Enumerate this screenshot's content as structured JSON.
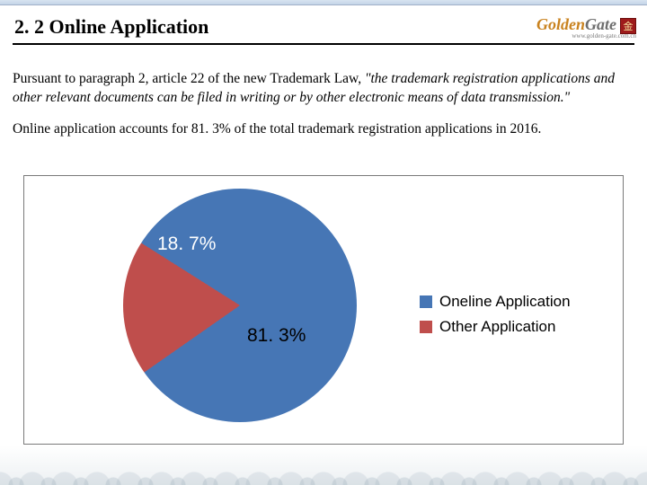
{
  "header": {
    "section_title": "2. 2  Online Application",
    "logo_part1": "Golden",
    "logo_part2": "Gate",
    "logo_seal": "金",
    "logo_subtitle": "www.golden-gate.com.cn"
  },
  "body": {
    "p1_lead": "Pursuant to paragraph 2, article 22 of the new Trademark Law, ",
    "p1_quote": "\"the trademark registration applications and other relevant documents can be filed in writing or by other electronic means of data transmission.\"",
    "p2": "Online application accounts for 81. 3% of the total trademark registration applications in 2016."
  },
  "chart": {
    "type": "pie",
    "background_color": "#ffffff",
    "border_color": "#7a7a7a",
    "slices": [
      {
        "label": "Oneline Application",
        "value": 81.3,
        "color": "#4676b5",
        "display": "81. 3%"
      },
      {
        "label": "Other Application",
        "value": 18.7,
        "color": "#bf4e4c",
        "display": "18. 7%"
      }
    ],
    "slice_a_label_color": "#ffffff",
    "slice_b_label_color": "#000000",
    "start_angle_deg": -125,
    "legend_fontsize_pt": 13,
    "data_label_fontsize_pt": 16,
    "legend_font": "Arial"
  }
}
